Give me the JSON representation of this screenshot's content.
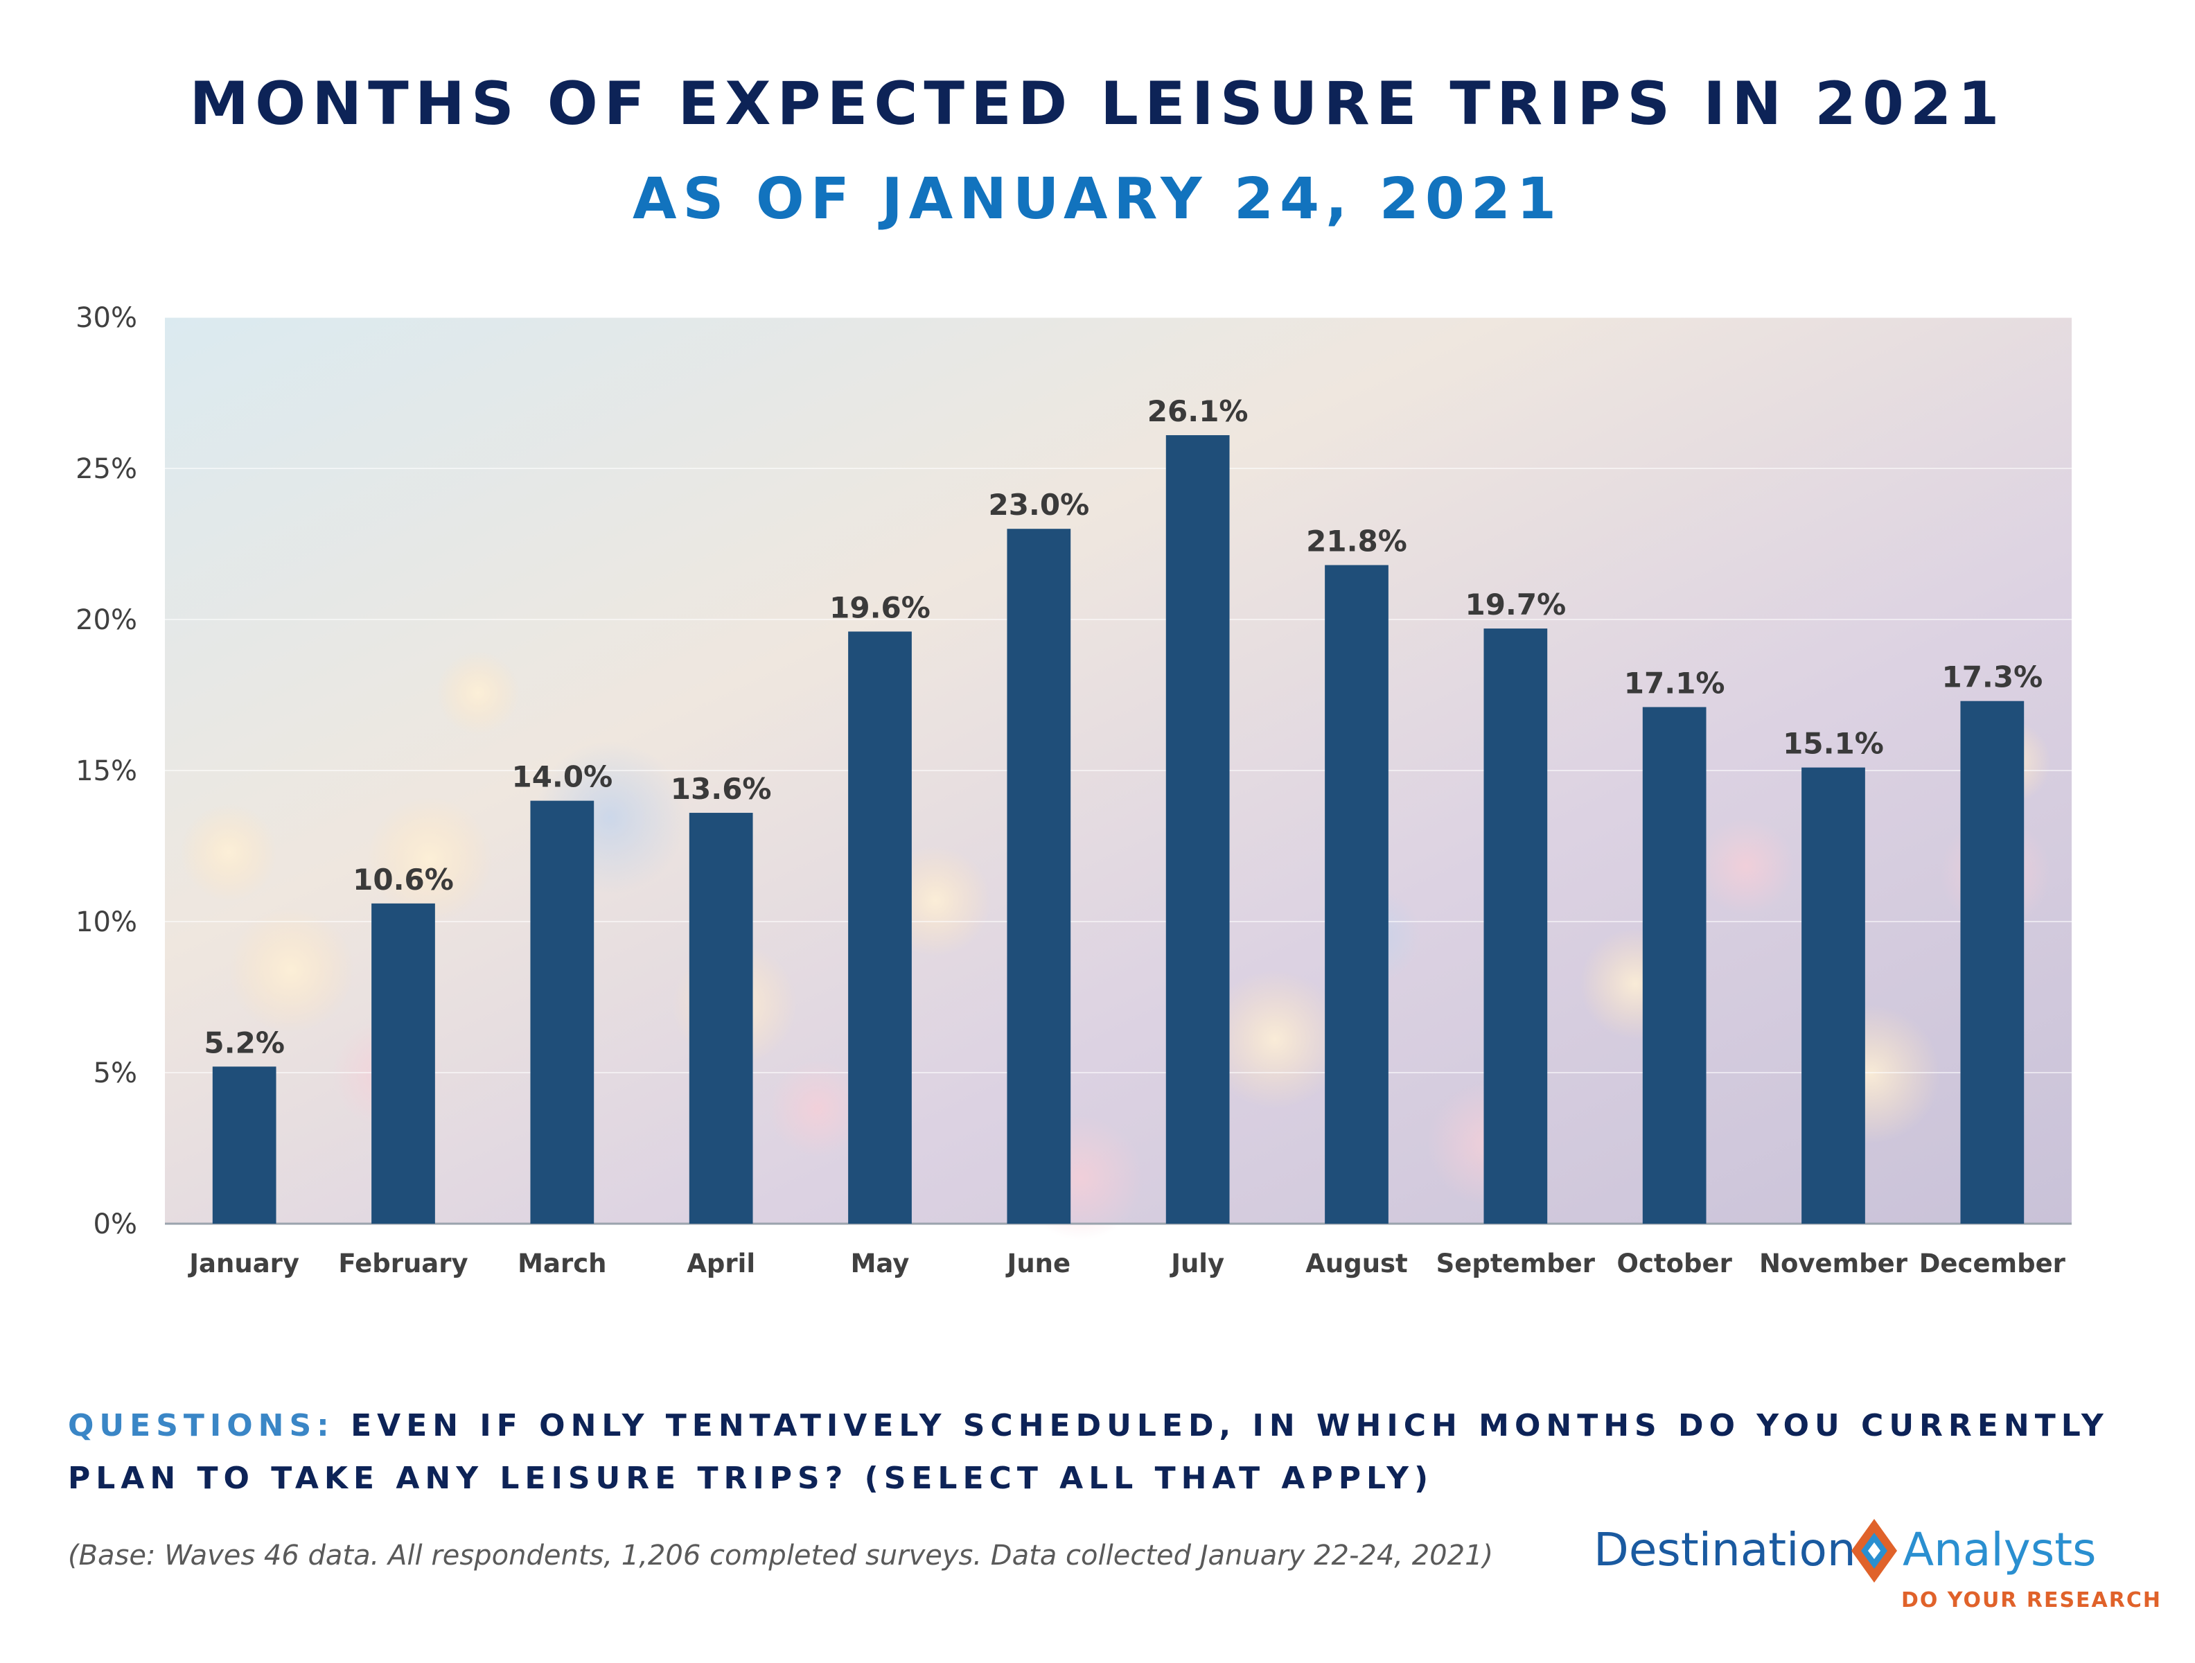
{
  "header": {
    "title": "MONTHS OF EXPECTED LEISURE TRIPS IN 2021",
    "subtitle": "AS OF JANUARY 24, 2021"
  },
  "chart_data": {
    "type": "bar",
    "categories": [
      "January",
      "February",
      "March",
      "April",
      "May",
      "June",
      "July",
      "August",
      "September",
      "October",
      "November",
      "December"
    ],
    "values": [
      5.2,
      10.6,
      14.0,
      13.6,
      19.6,
      23.0,
      26.1,
      21.8,
      19.7,
      17.1,
      15.1,
      17.3
    ],
    "data_labels": [
      "5.2%",
      "10.6%",
      "14.0%",
      "13.6%",
      "19.6%",
      "23.0%",
      "26.1%",
      "21.8%",
      "19.7%",
      "17.1%",
      "15.1%",
      "17.3%"
    ],
    "yticks": [
      "0%",
      "5%",
      "10%",
      "15%",
      "20%",
      "25%",
      "30%"
    ],
    "ylim": [
      0,
      30
    ],
    "grid": true,
    "bar_color": "#1f4e79",
    "legend": "none"
  },
  "footer": {
    "question_label": "QUESTIONS:",
    "question_text": "EVEN IF ONLY TENTATIVELY SCHEDULED, IN WHICH MONTHS DO YOU CURRENTLY PLAN TO TAKE ANY LEISURE TRIPS? (SELECT ALL THAT APPLY)",
    "base_note": "(Base: Waves 46 data. All respondents, 1,206 completed surveys. Data collected January 22-24, 2021)"
  },
  "logo": {
    "left_text": "Destination",
    "right_text": "Analysts",
    "tagline": "DO YOUR RESEARCH"
  },
  "colors": {
    "title": "#0d2357",
    "subtitle": "#1273be",
    "question_label": "#3a86c6",
    "logo_orange": "#e0622a",
    "logo_blue": "#2a8fd0"
  }
}
